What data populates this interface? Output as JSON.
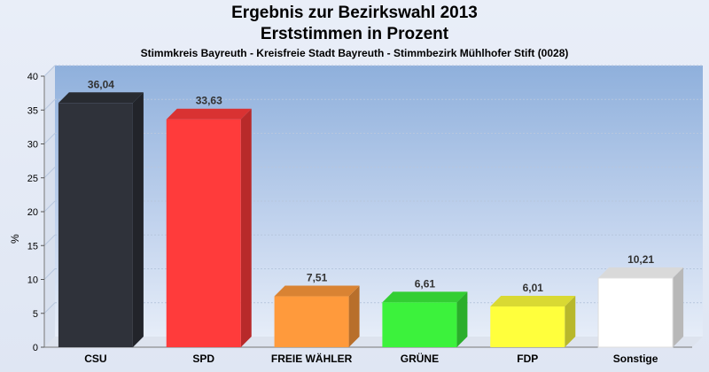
{
  "title": "Ergebnis zur Bezirkswahl 2013",
  "subtitle": "Erststimmen in Prozent",
  "subtitle2": "Stimmkreis Bayreuth - Kreisfreie Stadt Bayreuth - Stimmbezirk Mühlhofer Stift (0028)",
  "chart_data": {
    "type": "bar",
    "categories": [
      "CSU",
      "SPD",
      "FREIE WÄHLER",
      "GRÜNE",
      "FDP",
      "Sonstige"
    ],
    "values": [
      36.04,
      33.63,
      7.51,
      6.61,
      6.01,
      10.21
    ],
    "value_labels": [
      "36,04",
      "33,63",
      "7,51",
      "6,61",
      "6,01",
      "10,21"
    ],
    "colors": [
      "#2f323a",
      "#ff3b3b",
      "#ff9a3c",
      "#3cf23c",
      "#ffff3c",
      "#ffffff"
    ],
    "ylabel": "%",
    "ylim": [
      0,
      40
    ],
    "yticks": [
      0,
      5,
      10,
      15,
      20,
      25,
      30,
      35,
      40
    ],
    "grid": true,
    "legend": "none"
  }
}
